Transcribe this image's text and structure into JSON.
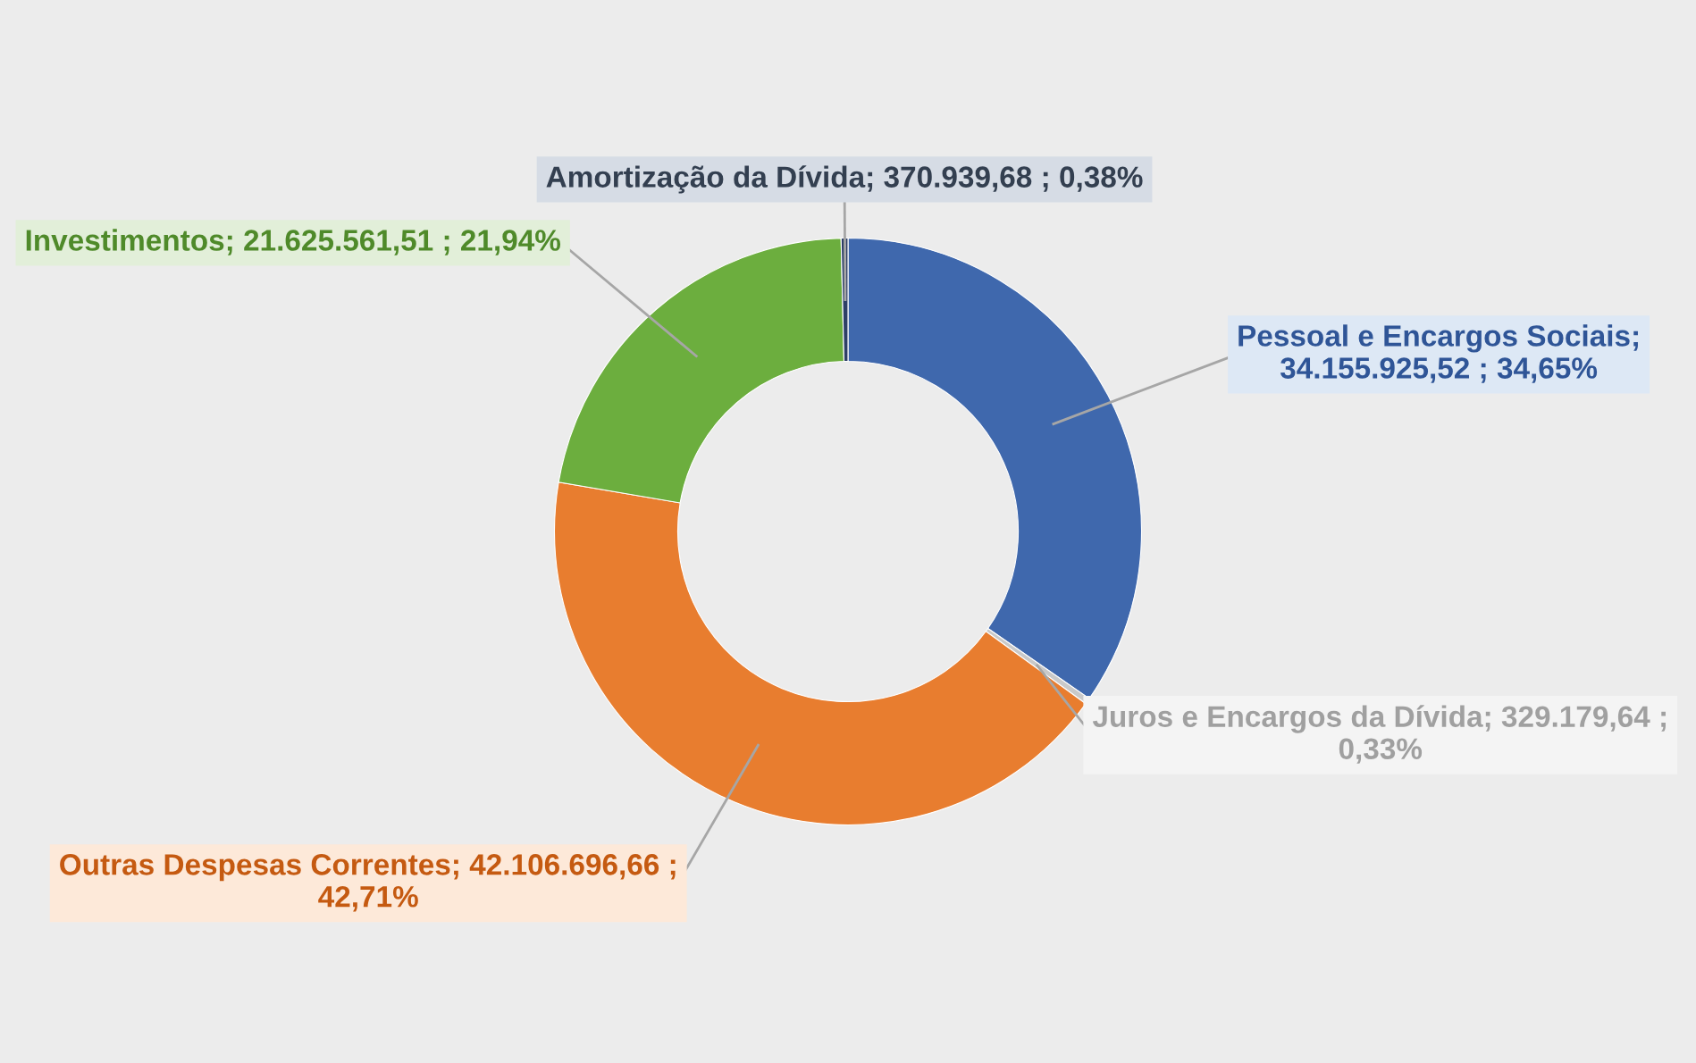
{
  "chart_data": {
    "type": "donut",
    "categories": [
      "Pessoal e Encargos Sociais",
      "Juros e Encargos da Dívida",
      "Outras Despesas Correntes",
      "Investimentos",
      "Amortização da Dívida"
    ],
    "values": [
      34155925.52,
      329179.64,
      42106696.66,
      21625561.51,
      370939.68
    ],
    "colors": [
      "#3f68ad",
      "#c9c9c9",
      "#e87d2f",
      "#6cae3e",
      "#2e3f66"
    ],
    "value_labels": [
      "; 34.155.925,52 ; 34,65%",
      "; 329.179,64 ; 0,33%",
      "; 42.106.696,66 ; 42,71%",
      "; 21.625.561,51 ; 21,94%",
      "; 370.939,68 ; 0,38%"
    ],
    "legend": false
  }
}
